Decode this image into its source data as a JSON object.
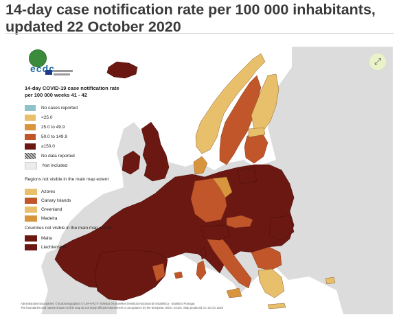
{
  "title": "14-day case notification rate per 100 000 inhabitants, updated 22 October 2020",
  "logo": {
    "text": "ecdc"
  },
  "expand_icon": "expand-arrows-icon",
  "legend": {
    "title": "14-day COVID-19 case notification rate per 100 000 weeks 41 - 42",
    "classes": [
      {
        "label": "No cases reported",
        "color": "#8fc3c9",
        "pattern": "solid"
      },
      {
        "label": "<25.0",
        "color": "#e8bf6a",
        "pattern": "solid"
      },
      {
        "label": "25.0 to 49.9",
        "color": "#d9953e",
        "pattern": "solid"
      },
      {
        "label": "50.0 to 149.9",
        "color": "#c0562a",
        "pattern": "solid"
      },
      {
        "label": "≥150.0",
        "color": "#6b1712",
        "pattern": "solid"
      },
      {
        "label": "No data reported",
        "color": "#777777",
        "pattern": "hatch"
      },
      {
        "label": "Not included",
        "color": "#ececec",
        "pattern": "solid"
      }
    ],
    "regions_heading": "Regions not visible in the main map extent",
    "regions": [
      {
        "label": "Azores",
        "color": "#e8bf6a"
      },
      {
        "label": "Canary Islands",
        "color": "#c0562a"
      },
      {
        "label": "Greenland",
        "color": "#e8bf6a"
      },
      {
        "label": "Madeira",
        "color": "#d9953e"
      }
    ],
    "countries_heading": "Countries not visible in the main map extent",
    "countries": [
      {
        "label": "Malta",
        "color": "#6b1712"
      },
      {
        "label": "Liechtenstein",
        "color": "#6b1712"
      }
    ]
  },
  "attribution": {
    "line1": "Administrative boundaries: © EuroGeographics © UN–FAO © Turkstat ©Kartverket ©Instituto Nacional de Estatística - Statistics Portugal.",
    "line2": "The boundaries and names shown on this map do not imply official endorsement or acceptance by the European Union. ECDC. Map produced on: 22 Oct 2020"
  },
  "colors": {
    "sea": "#ffffff",
    "land_not_included": "#dcdcdc",
    "border": "#5a1410"
  }
}
